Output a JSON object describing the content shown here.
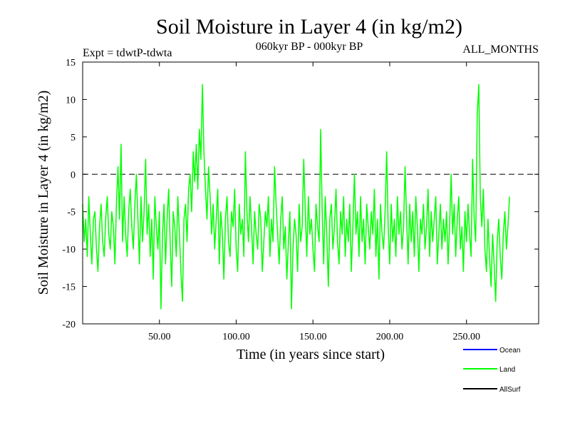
{
  "chart_data": {
    "type": "line",
    "title": "Soil Moisture in Layer 4 (in kg/m2)",
    "subtitle_left": "Expt = tdwtP-tdwta",
    "subtitle_center": "060kyr BP - 000kyr BP",
    "subtitle_right": "ALL_MONTHS",
    "xlabel": "Time (in years since start)",
    "ylabel": "Soil Moisture in Layer 4 (in kg/m2)",
    "xlim": [
      0,
      297
    ],
    "ylim": [
      -20,
      15
    ],
    "x_ticks": [
      50,
      100,
      150,
      200,
      250
    ],
    "x_tick_labels": [
      "50.00",
      "100.00",
      "150.00",
      "200.00",
      "250.00"
    ],
    "y_ticks": [
      -20,
      -15,
      -10,
      -5,
      0,
      5,
      10,
      15
    ],
    "y_tick_labels": [
      "-20",
      "-15",
      "-10",
      "-5",
      "0",
      "5",
      "10",
      "15"
    ],
    "reference_line": {
      "y": 0,
      "style": "dashed"
    },
    "legend": [
      {
        "name": "Ocean",
        "color": "#0000ff"
      },
      {
        "name": "Land",
        "color": "#00ff00"
      },
      {
        "name": "AllSurf",
        "color": "#000000"
      }
    ],
    "legend_position": "bottom-right",
    "series": [
      {
        "name": "Land",
        "color": "#00ff00",
        "x_start": 0,
        "x_step": 1,
        "values": [
          -4,
          -9,
          -6,
          -11,
          -3,
          -8,
          -12,
          -6,
          -5,
          -10,
          -13,
          -7,
          -4,
          -9,
          -11,
          -6,
          -3,
          -8,
          -10,
          -5,
          -7,
          -12,
          -4,
          1,
          -6,
          4,
          -9,
          -3,
          -8,
          -11,
          -5,
          -2,
          -7,
          -10,
          -4,
          0,
          -6,
          -12,
          -3,
          -9,
          -5,
          2,
          -8,
          -4,
          -11,
          -6,
          -14,
          -3,
          -7,
          -10,
          -5,
          -18,
          -8,
          -4,
          -12,
          -6,
          -2,
          -9,
          -15,
          -5,
          -7,
          -11,
          -3,
          -8,
          -13,
          -17,
          -6,
          -4,
          -9,
          -2,
          0,
          -5,
          3,
          -1,
          4,
          -2,
          6,
          2,
          12,
          3,
          -2,
          -6,
          1,
          -3,
          -8,
          -4,
          -10,
          -6,
          -2,
          -12,
          -5,
          -8,
          -14,
          -6,
          -3,
          -9,
          -11,
          -5,
          -7,
          -2,
          -10,
          -13,
          -4,
          -8,
          -6,
          -11,
          3,
          -5,
          -9,
          -3,
          -7,
          -12,
          -5,
          -8,
          -10,
          -4,
          -6,
          -13,
          -9,
          -5,
          -7,
          -3,
          -11,
          -6,
          -9,
          1,
          -4,
          -8,
          -12,
          -6,
          -3,
          -10,
          -7,
          -14,
          -9,
          -5,
          -18,
          -10,
          -6,
          -8,
          -13,
          -4,
          -9,
          -7,
          2,
          -5,
          -11,
          -3,
          -8,
          -6,
          -10,
          -13,
          -4,
          -7,
          -9,
          6,
          -5,
          -12,
          -3,
          -8,
          -15,
          -6,
          -4,
          -10,
          -7,
          -2,
          -9,
          -12,
          -5,
          -8,
          -3,
          -11,
          -6,
          -9,
          -4,
          -13,
          -7,
          0,
          -8,
          -5,
          -11,
          -3,
          -9,
          -6,
          -12,
          -4,
          -7,
          -10,
          -5,
          -8,
          -2,
          -11,
          -6,
          -14,
          -4,
          -8,
          -10,
          -5,
          3,
          -7,
          -12,
          -4,
          -9,
          -6,
          -11,
          -3,
          -8,
          -5,
          -10,
          -7,
          1,
          -6,
          -12,
          -4,
          -9,
          -5,
          -11,
          -3,
          -7,
          -13,
          -6,
          -8,
          -4,
          -10,
          -7,
          -2,
          -11,
          -5,
          -9,
          -6,
          -3,
          -12,
          -8,
          -4,
          -10,
          -6,
          -9,
          -5,
          -12,
          -7,
          0,
          -8,
          -4,
          -11,
          -6,
          -3,
          -10,
          -7,
          -13,
          -5,
          -9,
          -4,
          -8,
          -11,
          2,
          -6,
          -9,
          8,
          12,
          -3,
          -7,
          -2,
          -10,
          -13,
          -6,
          -11,
          -15,
          -8,
          -12,
          -17,
          -9,
          -6,
          -11,
          -14,
          -8,
          -5,
          -10,
          -7,
          -3
        ]
      }
    ]
  }
}
